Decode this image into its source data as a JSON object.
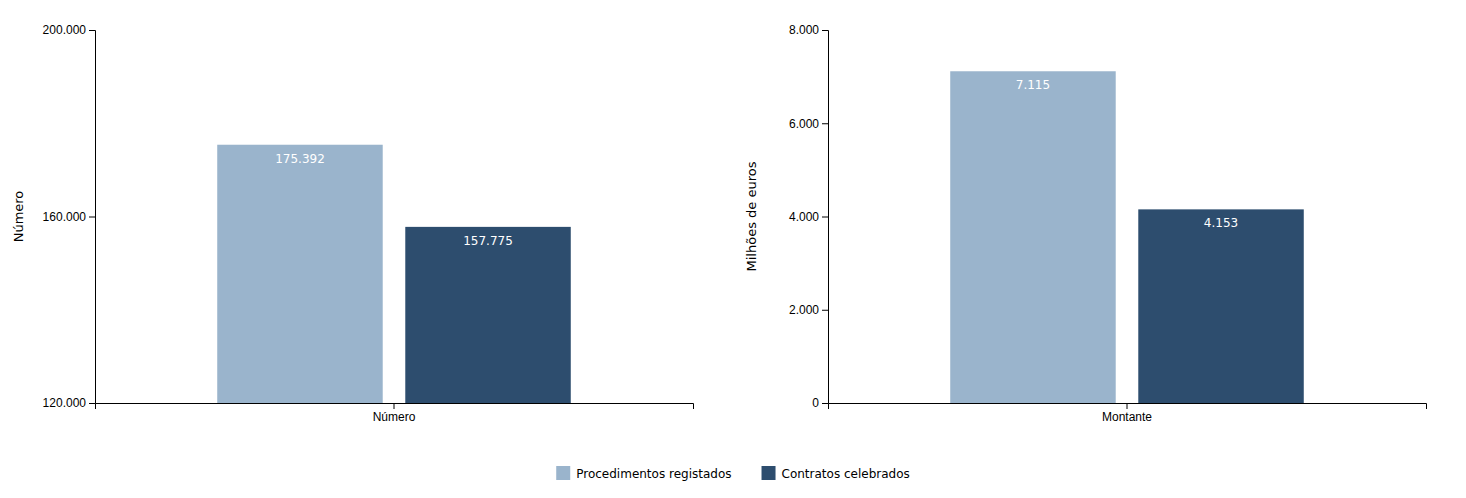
{
  "chart_data": [
    {
      "type": "bar",
      "categories": [
        "Número"
      ],
      "series": [
        {
          "name": "Procedimentos registados",
          "color": "#9ab4cc",
          "values": [
            175392
          ],
          "value_labels": [
            "175.392"
          ]
        },
        {
          "name": "Contratos celebrados",
          "color": "#2d4d6e",
          "values": [
            157775
          ],
          "value_labels": [
            "157.775"
          ]
        }
      ],
      "y_label": "Número",
      "ylim": [
        120000,
        200000
      ],
      "yticks": [
        {
          "value": 120000,
          "label": "120.000"
        },
        {
          "value": 160000,
          "label": "160.000"
        },
        {
          "value": 200000,
          "label": "200.000"
        }
      ],
      "data_labels": true,
      "grid": false,
      "legend": "bottom"
    },
    {
      "type": "bar",
      "categories": [
        "Montante"
      ],
      "series": [
        {
          "name": "Procedimentos registados",
          "color": "#9ab4cc",
          "values": [
            7115
          ],
          "value_labels": [
            "7.115"
          ]
        },
        {
          "name": "Contratos celebrados",
          "color": "#2d4d6e",
          "values": [
            4153
          ],
          "value_labels": [
            "4.153"
          ]
        }
      ],
      "y_label": "Milhões de euros",
      "ylim": [
        0,
        8000
      ],
      "yticks": [
        0,
        {
          "value": 2000,
          "label": "2.000"
        },
        {
          "value": 4000,
          "label": "4.000"
        },
        {
          "value": 6000,
          "label": "6.000"
        },
        {
          "value": 8000,
          "label": "8.000"
        }
      ],
      "data_labels": true,
      "grid": false
    }
  ]
}
